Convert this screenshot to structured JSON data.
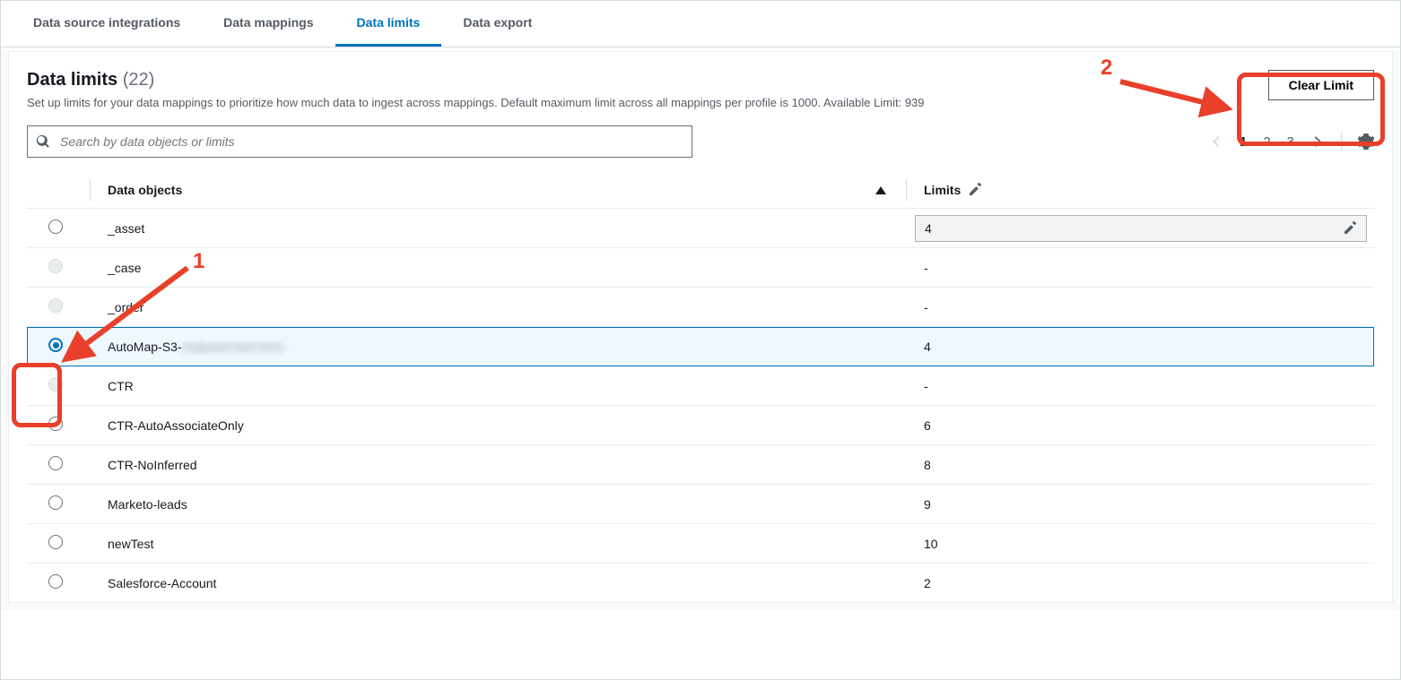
{
  "tabs": {
    "items": [
      {
        "label": "Data source integrations",
        "active": false
      },
      {
        "label": "Data mappings",
        "active": false
      },
      {
        "label": "Data limits",
        "active": true
      },
      {
        "label": "Data export",
        "active": false
      }
    ]
  },
  "header": {
    "title": "Data limits",
    "count": "(22)",
    "description": "Set up limits for your data mappings to prioritize how much data to ingest across mappings. Default maximum limit across all mappings per profile is 1000. Available Limit: 939",
    "clear_button": "Clear Limit"
  },
  "search": {
    "placeholder": "Search by data objects or limits"
  },
  "pagination": {
    "pages": [
      "1",
      "2",
      "3"
    ],
    "current": "1"
  },
  "columns": {
    "objects": "Data objects",
    "limits": "Limits"
  },
  "rows": [
    {
      "name": "_asset",
      "limit": "4",
      "radio": "enabled",
      "editing": true
    },
    {
      "name": "_case",
      "limit": "-",
      "radio": "disabled"
    },
    {
      "name": "_order",
      "limit": "-",
      "radio": "disabled"
    },
    {
      "name": "AutoMap-S3-",
      "name_blur": "redacted-text-here",
      "limit": "4",
      "radio": "checked"
    },
    {
      "name": "CTR",
      "limit": "-",
      "radio": "disabled"
    },
    {
      "name": "CTR-AutoAssociateOnly",
      "limit": "6",
      "radio": "enabled"
    },
    {
      "name": "CTR-NoInferred",
      "limit": "8",
      "radio": "enabled"
    },
    {
      "name": "Marketo-leads",
      "limit": "9",
      "radio": "enabled"
    },
    {
      "name": "newTest",
      "limit": "10",
      "radio": "enabled"
    },
    {
      "name": "Salesforce-Account",
      "limit": "2",
      "radio": "enabled"
    }
  ],
  "annotations": {
    "label1": "1",
    "label2": "2",
    "colors": {
      "stroke": "#e8402a"
    }
  }
}
